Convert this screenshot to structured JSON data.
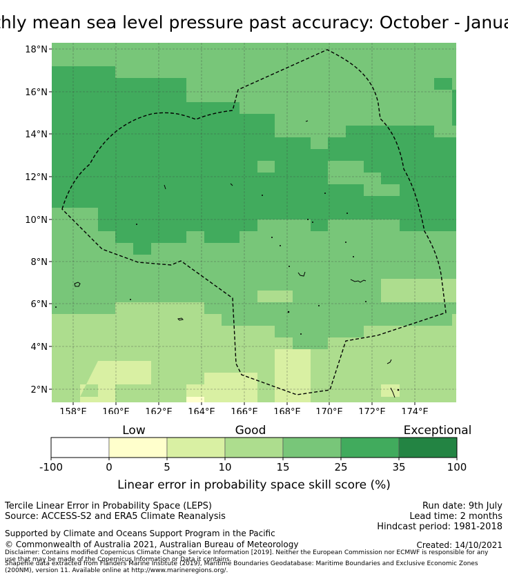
{
  "title": "Monthly mean sea level pressure past accuracy: October - January",
  "map": {
    "lat_labels": [
      "18°N",
      "16°N",
      "14°N",
      "12°N",
      "10°N",
      "8°N",
      "6°N",
      "4°N",
      "2°N"
    ],
    "lon_labels": [
      "158°E",
      "160°E",
      "162°E",
      "164°E",
      "166°E",
      "168°E",
      "170°E",
      "172°E",
      "174°E"
    ],
    "boundary": "Maritime Boundaries (EEZ, 200NM)",
    "skill_classes": [
      "0-5",
      "5-10",
      "10-15",
      "15-25",
      "25-35"
    ]
  },
  "legend": {
    "categories": [
      "Low",
      "Good",
      "Exceptional"
    ],
    "ticks": [
      "-100",
      "0",
      "5",
      "10",
      "15",
      "25",
      "35",
      "100"
    ],
    "colors": [
      "#ffffff",
      "#ffffcc",
      "#d9f0a3",
      "#addd8e",
      "#78c679",
      "#41ab5d",
      "#238443"
    ],
    "label": "Linear error in probability space skill score (%)"
  },
  "footer": {
    "method": "Tercile Linear Error in Probability Space (LEPS)",
    "source": "Source: ACCESS-S2 and ERA5 Climate Reanalysis",
    "run_date": "Run date: 9th July",
    "lead_time": "Lead time: 2 months",
    "hindcast": "Hindcast period: 1981-2018",
    "support": "Supported by Climate and Oceans Support Program in the Pacific",
    "copyright": "© Commonwealth of Australia 2021, Australian Bureau of Meteorology",
    "created": "Created: 14/10/2021",
    "disclaimer1": "Disclaimer: Contains modified Copernicus Climate Change Service Information [2019]. Neither the European Commission nor ECMWF is responsible for any",
    "disclaimer2": "use that may be made of the Copernicus Information or Data it contains.",
    "shapefile1": "Shapefile data extracted from Flanders Marine Institute (2019), Maritime Boundaries Geodatabase: Maritime Boundaries and Exclusive Economic Zones",
    "shapefile2": "(200NM), version 11. Available online at http://www.marineregions.org/."
  }
}
